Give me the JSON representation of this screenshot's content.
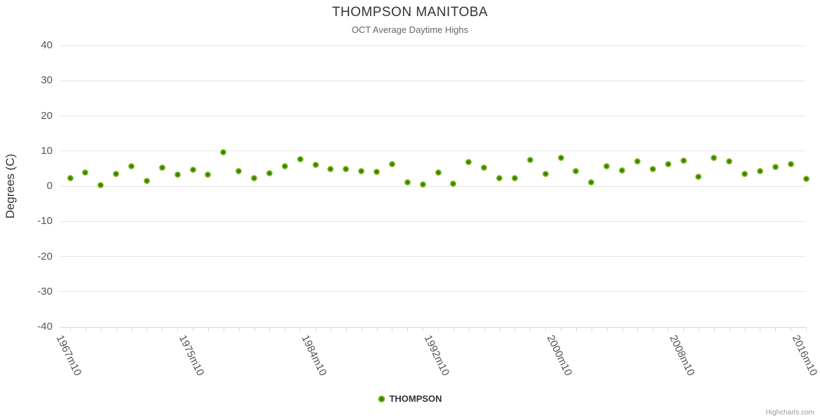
{
  "credits": "Highcharts.com",
  "chart_data": {
    "type": "scatter",
    "title": "THOMPSON MANITOBA",
    "subtitle": "OCT Average Daytime Highs",
    "ylabel": "Degrees (C)",
    "xlabel": "",
    "ylim": [
      -40,
      40
    ],
    "grid": true,
    "legend_position": "bottom-center",
    "y_ticks": [
      40,
      30,
      20,
      10,
      0,
      -10,
      -20,
      -30,
      -40
    ],
    "x_tick_labels": [
      {
        "index": 0,
        "text": "1967m10"
      },
      {
        "index": 8,
        "text": "1975m10"
      },
      {
        "index": 16,
        "text": "1984m10"
      },
      {
        "index": 24,
        "text": "1992m10"
      },
      {
        "index": 32,
        "text": "2000m10"
      },
      {
        "index": 40,
        "text": "2008m10"
      },
      {
        "index": 48,
        "text": "2016m10"
      }
    ],
    "series": [
      {
        "name": "THOMPSON",
        "x": [
          "1967m10",
          "1968m10",
          "1969m10",
          "1970m10",
          "1971m10",
          "1972m10",
          "1973m10",
          "1974m10",
          "1975m10",
          "1976m10",
          "1977m10",
          "1978m10",
          "1979m10",
          "1981m10",
          "1982m10",
          "1983m10",
          "1984m10",
          "1985m10",
          "1986m10",
          "1987m10",
          "1988m10",
          "1989m10",
          "1990m10",
          "1991m10",
          "1992m10",
          "1993m10",
          "1994m10",
          "1995m10",
          "1996m10",
          "1997m10",
          "1998m10",
          "1999m10",
          "2000m10",
          "2001m10",
          "2002m10",
          "2003m10",
          "2004m10",
          "2005m10",
          "2006m10",
          "2007m10",
          "2008m10",
          "2009m10",
          "2010m10",
          "2011m10",
          "2012m10",
          "2013m10",
          "2014m10",
          "2015m10",
          "2016m10"
        ],
        "values": [
          2.3,
          3.8,
          0.3,
          3.4,
          5.6,
          1.4,
          5.3,
          3.2,
          4.7,
          3.2,
          9.6,
          4.2,
          2.2,
          3.7,
          5.6,
          7.6,
          6.0,
          4.8,
          4.9,
          4.2,
          4.1,
          6.2,
          1.1,
          0.4,
          3.9,
          0.7,
          6.8,
          5.2,
          2.2,
          2.3,
          7.4,
          3.5,
          8.0,
          4.3,
          1.0,
          5.7,
          4.5,
          7.0,
          4.9,
          6.3,
          7.2,
          2.6,
          8.0,
          7.0,
          3.4,
          4.2,
          5.5,
          6.3,
          2.1
        ]
      }
    ],
    "colors": {
      "marker_outer": "#8dc73c",
      "marker_inner": "#3e7f05",
      "grid_line": "#e6e6e6",
      "axis_line": "#ccd6eb",
      "title": "#333333",
      "subtitle": "#666666",
      "axis_label": "#555555",
      "legend_text": "#333333",
      "credits": "#999999"
    }
  }
}
